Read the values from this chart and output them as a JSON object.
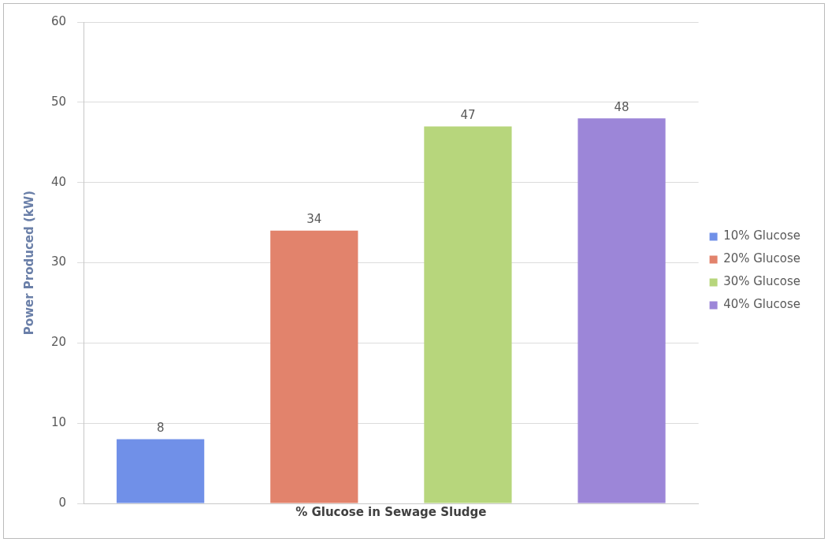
{
  "chart_data": {
    "type": "bar",
    "ylabel": "Power Produced (kW)",
    "categories": [
      "% Glucose in Sewage Sludge"
    ],
    "series": [
      {
        "name": "10% Glucose",
        "color": "#7090e8",
        "values": [
          8
        ]
      },
      {
        "name": "20% Glucose",
        "color": "#e2836c",
        "values": [
          34
        ]
      },
      {
        "name": "30% Glucose",
        "color": "#b7d67c",
        "values": [
          47
        ]
      },
      {
        "name": "40% Glucose",
        "color": "#9c86d8",
        "values": [
          48
        ]
      }
    ],
    "ylim": [
      0,
      60
    ],
    "yticks": [
      0,
      10,
      20,
      30,
      40,
      50,
      60
    ],
    "grid": "y",
    "legend": "right",
    "data_labels": true
  }
}
